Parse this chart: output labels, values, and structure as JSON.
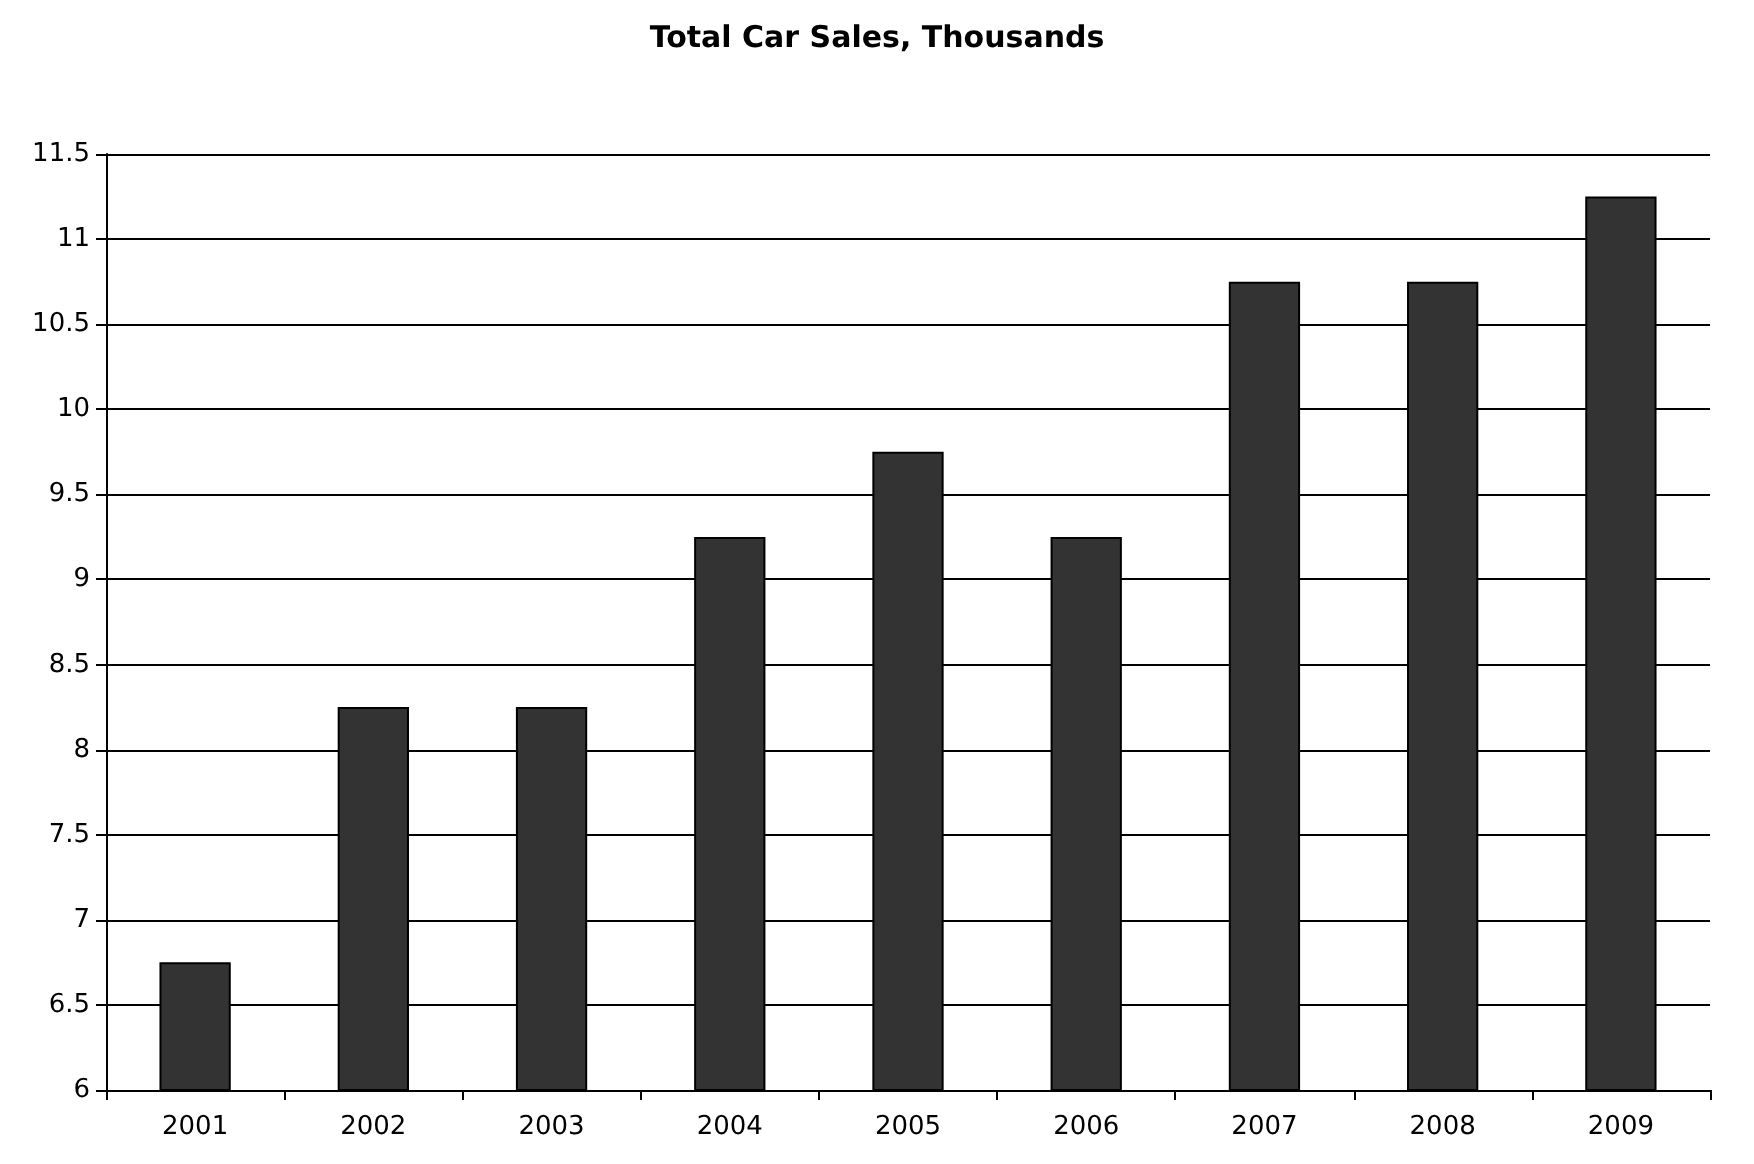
{
  "chart_data": {
    "type": "bar",
    "title": "Total Car Sales, Thousands",
    "categories": [
      "2001",
      "2002",
      "2003",
      "2004",
      "2005",
      "2006",
      "2007",
      "2008",
      "2009"
    ],
    "values": [
      6.75,
      8.25,
      8.25,
      9.25,
      9.75,
      9.25,
      10.75,
      10.75,
      11.25
    ],
    "color": "#333333",
    "ylim": [
      6,
      11.5
    ],
    "yticks": [
      6,
      6.5,
      7,
      7.5,
      8,
      8.5,
      9,
      9.5,
      10,
      10.5,
      11,
      11.5
    ],
    "grid": "y"
  }
}
